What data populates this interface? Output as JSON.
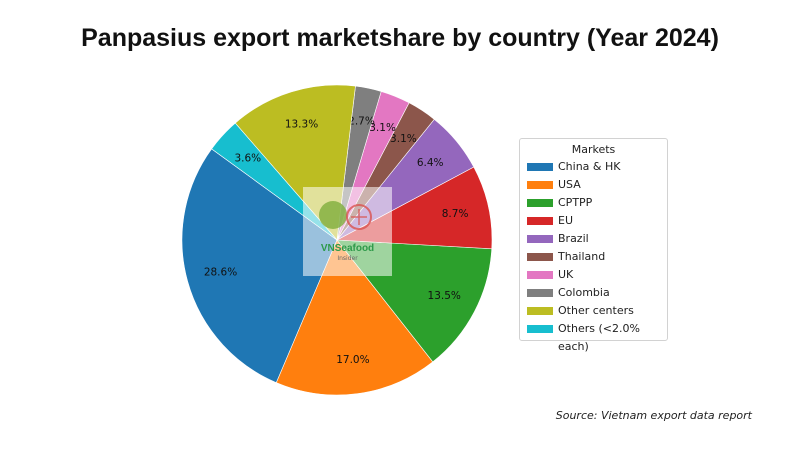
{
  "title": "Panpasius export marketshare by country (Year 2024)",
  "source": "Source: Vietnam export data report",
  "watermark": {
    "brand": "VNSeafood",
    "sub": "Insider"
  },
  "colors": {
    "China & HK": "#1f77b4",
    "USA": "#ff7f0e",
    "CPTPP": "#2ca02c",
    "EU": "#d62728",
    "Brazil": "#9467bd",
    "Thailand": "#8c564b",
    "UK": "#e377c2",
    "Colombia": "#7f7f7f",
    "Other centers": "#bcbd22",
    "Others (<2.0% each)": "#17becf"
  },
  "chart_data": {
    "type": "pie",
    "title": "Panpasius export marketshare by country (Year 2024)",
    "legend_title": "Markets",
    "legend_position": "right",
    "slices": [
      {
        "label": "China & HK",
        "value": 28.6,
        "text": "28.6%"
      },
      {
        "label": "USA",
        "value": 17.0,
        "text": "17.0%"
      },
      {
        "label": "CPTPP",
        "value": 13.5,
        "text": "13.5%"
      },
      {
        "label": "EU",
        "value": 8.7,
        "text": "8.7%"
      },
      {
        "label": "Brazil",
        "value": 6.4,
        "text": "6.4%"
      },
      {
        "label": "Thailand",
        "value": 3.1,
        "text": "3.1%"
      },
      {
        "label": "UK",
        "value": 3.1,
        "text": "3.1%"
      },
      {
        "label": "Colombia",
        "value": 2.7,
        "text": "2.7%"
      },
      {
        "label": "Other centers",
        "value": 13.3,
        "text": "13.3%"
      },
      {
        "label": "Others (<2.0% each)",
        "value": 3.6,
        "text": "3.6%"
      }
    ]
  }
}
